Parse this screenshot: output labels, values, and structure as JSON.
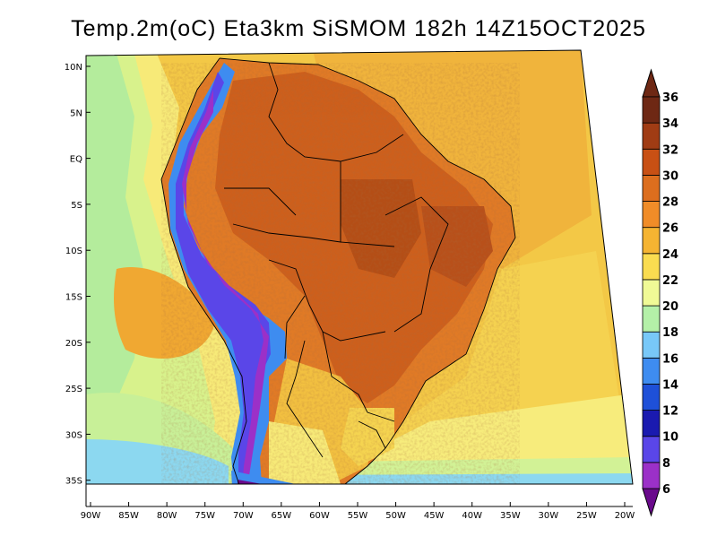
{
  "title": "Temp.2m(oC) Eta3km SiSMOM 182h 14Z15OCT2025",
  "chart_data": {
    "type": "map",
    "variable": "Temp.2m(oC)",
    "lon_ticks": [
      "90W",
      "85W",
      "80W",
      "75W",
      "70W",
      "65W",
      "60W",
      "55W",
      "50W",
      "45W",
      "40W",
      "35W",
      "30W",
      "25W",
      "20W"
    ],
    "lat_ticks": [
      "10N",
      "5N",
      "EQ",
      "5S",
      "10S",
      "15S",
      "20S",
      "25S",
      "30S",
      "35S"
    ],
    "colorbar": {
      "labels": [
        "6",
        "8",
        "10",
        "12",
        "14",
        "16",
        "18",
        "20",
        "22",
        "24",
        "26",
        "28",
        "30",
        "32",
        "34",
        "36"
      ],
      "colors": [
        "#6a0a8c",
        "#9b30c8",
        "#5a46e8",
        "#1a1ab0",
        "#1e50d8",
        "#3e8cf0",
        "#78c8f8",
        "#b4f0a8",
        "#f0fa96",
        "#fadc50",
        "#f5b432",
        "#f08c28",
        "#dc6e1e",
        "#c85014",
        "#a03c14",
        "#6e2814"
      ]
    }
  }
}
